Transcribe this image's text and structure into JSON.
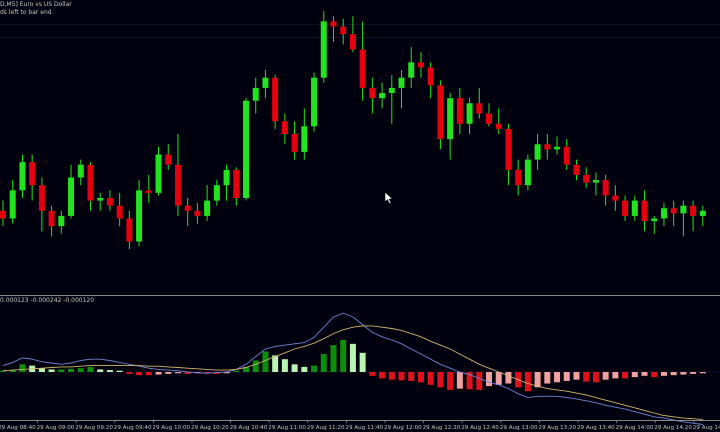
{
  "window": {
    "symbol_title": "D,M5]  Euro vs US Dollar",
    "subtitle": "ds left to bar end",
    "indicator_label": "0.000123 -0.000242 -0.000120"
  },
  "colors": {
    "background": "#00000e",
    "bull": "#22e31e",
    "bear": "#e6000f",
    "wick": "#22e31e",
    "hist_bull_dark": "#0b8f0b",
    "hist_bull_light": "#b9f4b1",
    "hist_bear_dark": "#e0111b",
    "hist_bear_light": "#f2a1a1",
    "line_fast": "#6f84d6",
    "line_slow": "#d2b46b",
    "grid_line": "#1f2350",
    "separator": "#8a8a8a"
  },
  "x_axis": {
    "tick_labels": [
      "29 Aug 08:40",
      "29 Aug 09:00",
      "29 Aug 09:20",
      "29 Aug 09:40",
      "29 Aug 10:00",
      "29 Aug 10:20",
      "29 Aug 10:40",
      "29 Aug 11:00",
      "29 Aug 11:20",
      "29 Aug 11:40",
      "29 Aug 12:00",
      "29 Aug 12:20",
      "29 Aug 12:40",
      "29 Aug 13:00",
      "29 Aug 13:20",
      "29 Aug 13:40",
      "29 Aug 14:00",
      "29 Aug 14:20",
      "29 Aug 14:40"
    ]
  },
  "chart_data": [
    {
      "type": "candlestick",
      "title": "",
      "price_range": [
        0,
        100
      ],
      "candles": [
        {
          "o": 20,
          "h": 24,
          "l": 14,
          "c": 17
        },
        {
          "o": 17,
          "h": 32,
          "l": 15,
          "c": 28
        },
        {
          "o": 28,
          "h": 42,
          "l": 25,
          "c": 39
        },
        {
          "o": 39,
          "h": 42,
          "l": 24,
          "c": 30
        },
        {
          "o": 30,
          "h": 33,
          "l": 12,
          "c": 20
        },
        {
          "o": 20,
          "h": 22,
          "l": 10,
          "c": 14
        },
        {
          "o": 14,
          "h": 20,
          "l": 11,
          "c": 18
        },
        {
          "o": 18,
          "h": 38,
          "l": 17,
          "c": 33
        },
        {
          "o": 33,
          "h": 40,
          "l": 30,
          "c": 38
        },
        {
          "o": 38,
          "h": 39,
          "l": 20,
          "c": 24
        },
        {
          "o": 24,
          "h": 27,
          "l": 20,
          "c": 25
        },
        {
          "o": 25,
          "h": 28,
          "l": 20,
          "c": 22
        },
        {
          "o": 22,
          "h": 27,
          "l": 14,
          "c": 17
        },
        {
          "o": 17,
          "h": 20,
          "l": 5,
          "c": 8
        },
        {
          "o": 8,
          "h": 32,
          "l": 6,
          "c": 28
        },
        {
          "o": 28,
          "h": 34,
          "l": 23,
          "c": 27
        },
        {
          "o": 27,
          "h": 45,
          "l": 26,
          "c": 42
        },
        {
          "o": 42,
          "h": 46,
          "l": 36,
          "c": 38
        },
        {
          "o": 38,
          "h": 50,
          "l": 18,
          "c": 22
        },
        {
          "o": 22,
          "h": 25,
          "l": 14,
          "c": 20
        },
        {
          "o": 20,
          "h": 23,
          "l": 15,
          "c": 18
        },
        {
          "o": 18,
          "h": 30,
          "l": 16,
          "c": 24
        },
        {
          "o": 24,
          "h": 32,
          "l": 22,
          "c": 30
        },
        {
          "o": 30,
          "h": 38,
          "l": 24,
          "c": 36
        },
        {
          "o": 36,
          "h": 37,
          "l": 22,
          "c": 25
        },
        {
          "o": 25,
          "h": 64,
          "l": 24,
          "c": 63
        },
        {
          "o": 63,
          "h": 72,
          "l": 58,
          "c": 68
        },
        {
          "o": 68,
          "h": 75,
          "l": 64,
          "c": 72
        },
        {
          "o": 72,
          "h": 73,
          "l": 52,
          "c": 55
        },
        {
          "o": 55,
          "h": 58,
          "l": 46,
          "c": 50
        },
        {
          "o": 50,
          "h": 55,
          "l": 40,
          "c": 43
        },
        {
          "o": 43,
          "h": 60,
          "l": 40,
          "c": 53
        },
        {
          "o": 53,
          "h": 74,
          "l": 51,
          "c": 72
        },
        {
          "o": 72,
          "h": 98,
          "l": 70,
          "c": 94
        },
        {
          "o": 94,
          "h": 96,
          "l": 86,
          "c": 92
        },
        {
          "o": 92,
          "h": 95,
          "l": 85,
          "c": 89
        },
        {
          "o": 89,
          "h": 96,
          "l": 82,
          "c": 83
        },
        {
          "o": 83,
          "h": 94,
          "l": 63,
          "c": 68
        },
        {
          "o": 68,
          "h": 72,
          "l": 58,
          "c": 64
        },
        {
          "o": 64,
          "h": 70,
          "l": 60,
          "c": 66
        },
        {
          "o": 66,
          "h": 73,
          "l": 54,
          "c": 68
        },
        {
          "o": 68,
          "h": 75,
          "l": 60,
          "c": 72
        },
        {
          "o": 72,
          "h": 84,
          "l": 68,
          "c": 78
        },
        {
          "o": 78,
          "h": 82,
          "l": 72,
          "c": 76
        },
        {
          "o": 76,
          "h": 78,
          "l": 64,
          "c": 69
        },
        {
          "o": 69,
          "h": 71,
          "l": 44,
          "c": 48
        },
        {
          "o": 48,
          "h": 66,
          "l": 40,
          "c": 64
        },
        {
          "o": 64,
          "h": 68,
          "l": 50,
          "c": 54
        },
        {
          "o": 54,
          "h": 64,
          "l": 50,
          "c": 62
        },
        {
          "o": 62,
          "h": 68,
          "l": 56,
          "c": 58
        },
        {
          "o": 58,
          "h": 62,
          "l": 53,
          "c": 54
        },
        {
          "o": 54,
          "h": 60,
          "l": 50,
          "c": 52
        },
        {
          "o": 52,
          "h": 54,
          "l": 30,
          "c": 36
        },
        {
          "o": 36,
          "h": 40,
          "l": 26,
          "c": 30
        },
        {
          "o": 30,
          "h": 42,
          "l": 28,
          "c": 40
        },
        {
          "o": 40,
          "h": 50,
          "l": 36,
          "c": 46
        },
        {
          "o": 46,
          "h": 50,
          "l": 40,
          "c": 44
        },
        {
          "o": 44,
          "h": 49,
          "l": 42,
          "c": 45
        },
        {
          "o": 45,
          "h": 48,
          "l": 36,
          "c": 38
        },
        {
          "o": 38,
          "h": 40,
          "l": 32,
          "c": 34
        },
        {
          "o": 34,
          "h": 37,
          "l": 29,
          "c": 31
        },
        {
          "o": 31,
          "h": 35,
          "l": 26,
          "c": 32
        },
        {
          "o": 32,
          "h": 34,
          "l": 22,
          "c": 26
        },
        {
          "o": 26,
          "h": 30,
          "l": 20,
          "c": 24
        },
        {
          "o": 24,
          "h": 26,
          "l": 16,
          "c": 18
        },
        {
          "o": 18,
          "h": 26,
          "l": 16,
          "c": 24
        },
        {
          "o": 24,
          "h": 28,
          "l": 12,
          "c": 16
        },
        {
          "o": 16,
          "h": 18,
          "l": 11,
          "c": 17
        },
        {
          "o": 17,
          "h": 23,
          "l": 14,
          "c": 21
        },
        {
          "o": 21,
          "h": 24,
          "l": 14,
          "c": 19
        },
        {
          "o": 19,
          "h": 24,
          "l": 10,
          "c": 22
        },
        {
          "o": 22,
          "h": 24,
          "l": 12,
          "c": 18
        },
        {
          "o": 18,
          "h": 22,
          "l": 14,
          "c": 20
        }
      ]
    },
    {
      "type": "bar",
      "title": "",
      "subtype": "oscillator-histogram",
      "range": [
        -1,
        1
      ],
      "histogram": [
        0.02,
        0.03,
        0.12,
        0.1,
        0.06,
        0.04,
        0.04,
        0.05,
        0.06,
        0.08,
        0.04,
        0.03,
        0.02,
        -0.03,
        -0.05,
        -0.05,
        -0.04,
        -0.03,
        -0.02,
        -0.03,
        -0.02,
        -0.02,
        -0.03,
        -0.02,
        0.02,
        0.08,
        0.18,
        0.32,
        0.26,
        0.2,
        0.12,
        0.08,
        0.1,
        0.28,
        0.42,
        0.5,
        0.44,
        0.3,
        -0.06,
        -0.1,
        -0.12,
        -0.13,
        -0.14,
        -0.16,
        -0.2,
        -0.24,
        -0.28,
        -0.26,
        -0.27,
        -0.28,
        -0.22,
        -0.2,
        -0.18,
        -0.24,
        -0.3,
        -0.24,
        -0.18,
        -0.16,
        -0.14,
        -0.12,
        -0.15,
        -0.16,
        -0.12,
        -0.1,
        -0.1,
        -0.08,
        -0.06,
        -0.08,
        -0.06,
        -0.05,
        -0.04,
        -0.03,
        -0.02
      ],
      "series": [
        {
          "values": [
            0.1,
            0.15,
            0.22,
            0.2,
            0.16,
            0.14,
            0.12,
            0.14,
            0.18,
            0.2,
            0.2,
            0.18,
            0.15,
            0.12,
            0.09,
            0.06,
            0.04,
            0.03,
            0.02,
            0.0,
            -0.01,
            -0.02,
            -0.01,
            0.0,
            0.04,
            0.12,
            0.24,
            0.36,
            0.4,
            0.42,
            0.44,
            0.46,
            0.54,
            0.7,
            0.86,
            0.92,
            0.86,
            0.74,
            0.62,
            0.55,
            0.5,
            0.44,
            0.36,
            0.28,
            0.2,
            0.12,
            0.06,
            0.0,
            -0.04,
            -0.1,
            -0.16,
            -0.2,
            -0.26,
            -0.34,
            -0.4,
            -0.38,
            -0.38,
            -0.38,
            -0.4,
            -0.42,
            -0.45,
            -0.48,
            -0.52,
            -0.55,
            -0.58,
            -0.62,
            -0.66,
            -0.7,
            -0.72,
            -0.75,
            -0.78,
            -0.8,
            -0.82
          ]
        },
        {
          "values": [
            0.02,
            0.03,
            0.04,
            0.05,
            0.06,
            0.07,
            0.08,
            0.08,
            0.09,
            0.1,
            0.1,
            0.1,
            0.1,
            0.1,
            0.1,
            0.09,
            0.09,
            0.08,
            0.07,
            0.06,
            0.05,
            0.04,
            0.03,
            0.03,
            0.04,
            0.07,
            0.12,
            0.18,
            0.24,
            0.3,
            0.36,
            0.4,
            0.45,
            0.52,
            0.6,
            0.66,
            0.7,
            0.72,
            0.72,
            0.7,
            0.68,
            0.65,
            0.6,
            0.55,
            0.48,
            0.42,
            0.36,
            0.28,
            0.2,
            0.12,
            0.06,
            0.0,
            -0.06,
            -0.12,
            -0.18,
            -0.22,
            -0.26,
            -0.28,
            -0.3,
            -0.33,
            -0.36,
            -0.4,
            -0.44,
            -0.48,
            -0.52,
            -0.56,
            -0.6,
            -0.64,
            -0.68,
            -0.7,
            -0.72,
            -0.73,
            -0.74
          ]
        }
      ]
    }
  ]
}
